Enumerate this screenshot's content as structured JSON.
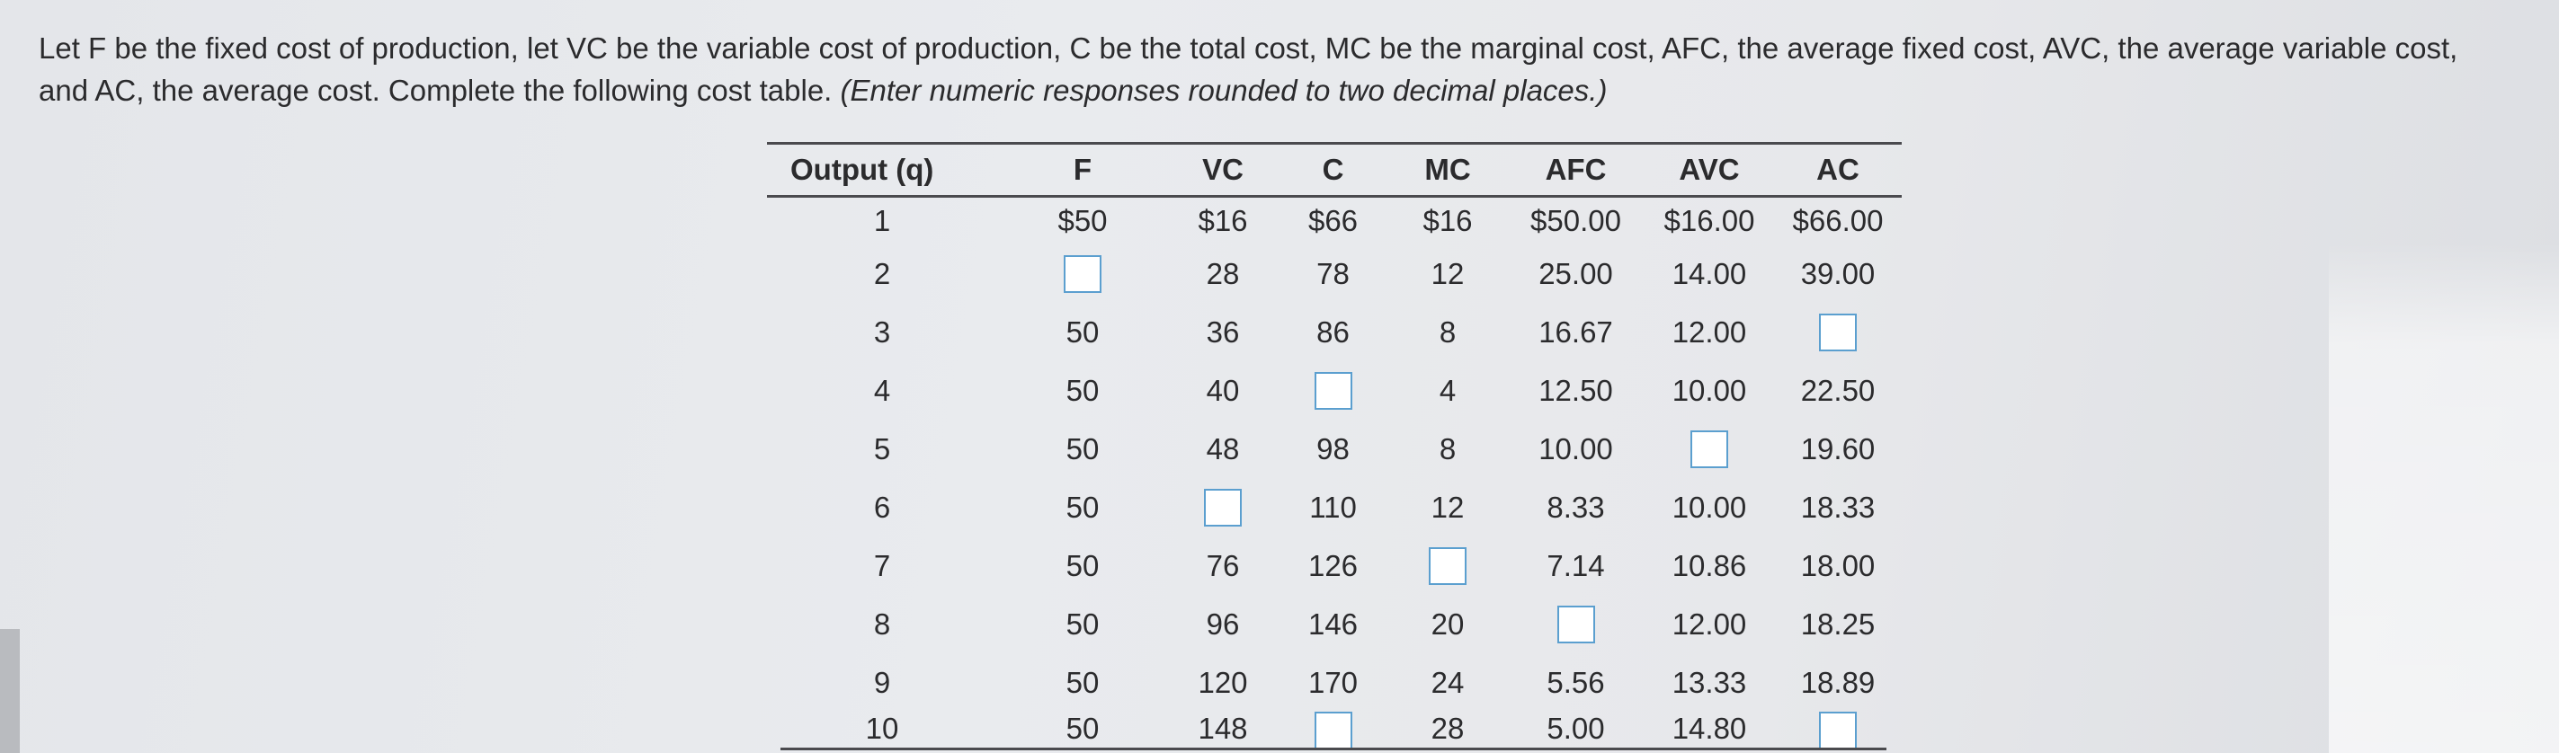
{
  "question": {
    "text": "Let F be the fixed cost of production, let VC be the variable cost of production, C be the total cost, MC be the marginal cost, AFC, the average fixed cost, AVC, the average variable cost, and AC, the average cost. Complete the following cost table.",
    "instruction": "(Enter numeric responses rounded to two decimal places.)"
  },
  "table": {
    "headers": [
      "Output (q)",
      "F",
      "VC",
      "C",
      "MC",
      "AFC",
      "AVC",
      "AC"
    ],
    "rows": [
      [
        "1",
        "$50",
        "$16",
        "$66",
        "$16",
        "$50.00",
        "$16.00",
        "$66.00"
      ],
      [
        "2",
        null,
        "28",
        "78",
        "12",
        "25.00",
        "14.00",
        "39.00"
      ],
      [
        "3",
        "50",
        "36",
        "86",
        "8",
        "16.67",
        "12.00",
        null
      ],
      [
        "4",
        "50",
        "40",
        null,
        "4",
        "12.50",
        "10.00",
        "22.50"
      ],
      [
        "5",
        "50",
        "48",
        "98",
        "8",
        "10.00",
        null,
        "19.60"
      ],
      [
        "6",
        "50",
        null,
        "110",
        "12",
        "8.33",
        "10.00",
        "18.33"
      ],
      [
        "7",
        "50",
        "76",
        "126",
        null,
        "7.14",
        "10.86",
        "18.00"
      ],
      [
        "8",
        "50",
        "96",
        "146",
        "20",
        null,
        "12.00",
        "18.25"
      ],
      [
        "9",
        "50",
        "120",
        "170",
        "24",
        "5.56",
        "13.33",
        "18.89"
      ],
      [
        "10",
        "50",
        "148",
        null,
        "28",
        "5.00",
        "14.80",
        null
      ]
    ]
  },
  "colors": {
    "input_border": "#5b9fcf",
    "rule": "#4a4a4e"
  }
}
